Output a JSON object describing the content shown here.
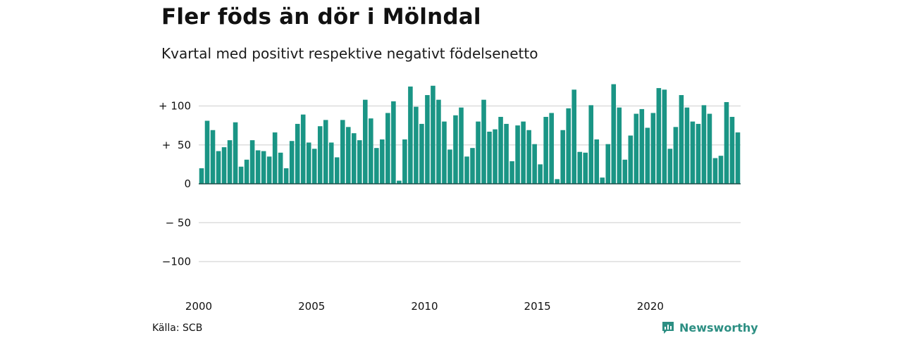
{
  "title": "Fler föds än dör i Mölndal",
  "subtitle": "Kvartal med positivt respektive negativt födelsenetto",
  "source": "Källa: SCB",
  "brand": {
    "name": "Newsworthy",
    "icon": "newsworthy-logo-icon",
    "color": "#2d8f83"
  },
  "colors": {
    "bar": "#1a9585",
    "grid": "#dddddd",
    "baseline": "#1a4f48"
  },
  "chart_data": {
    "type": "bar",
    "title": "Fler föds än dör i Mölndal",
    "subtitle": "Kvartal med positivt respektive negativt födelsenetto",
    "xlabel": "",
    "ylabel": "",
    "ylim": [
      -125,
      130
    ],
    "grid": true,
    "y_ticks": [
      100,
      50,
      0,
      -50,
      -100
    ],
    "y_tick_labels": [
      "+ 100",
      "+  50",
      "0",
      "− 50",
      "−100"
    ],
    "x_ticks": [
      2000,
      2005,
      2010,
      2015,
      2020
    ],
    "x_tick_labels": [
      "2000",
      "2005",
      "2010",
      "2015",
      "2020"
    ],
    "x_start": 2000,
    "periods_per_year": 4,
    "values": [
      20,
      81,
      69,
      42,
      47,
      56,
      79,
      22,
      31,
      56,
      43,
      42,
      35,
      66,
      40,
      20,
      55,
      77,
      89,
      53,
      45,
      74,
      82,
      53,
      34,
      82,
      73,
      65,
      56,
      108,
      84,
      46,
      57,
      91,
      106,
      4,
      57,
      125,
      99,
      77,
      114,
      126,
      108,
      80,
      44,
      88,
      98,
      35,
      46,
      80,
      108,
      67,
      70,
      86,
      77,
      29,
      75,
      80,
      69,
      51,
      25,
      86,
      91,
      6,
      69,
      97,
      121,
      41,
      40,
      101,
      57,
      8,
      51,
      128,
      98,
      31,
      62,
      90,
      96,
      72,
      91,
      123,
      121,
      45,
      73,
      114,
      98,
      80,
      77,
      101,
      90,
      33,
      36,
      105,
      86,
      66
    ]
  }
}
